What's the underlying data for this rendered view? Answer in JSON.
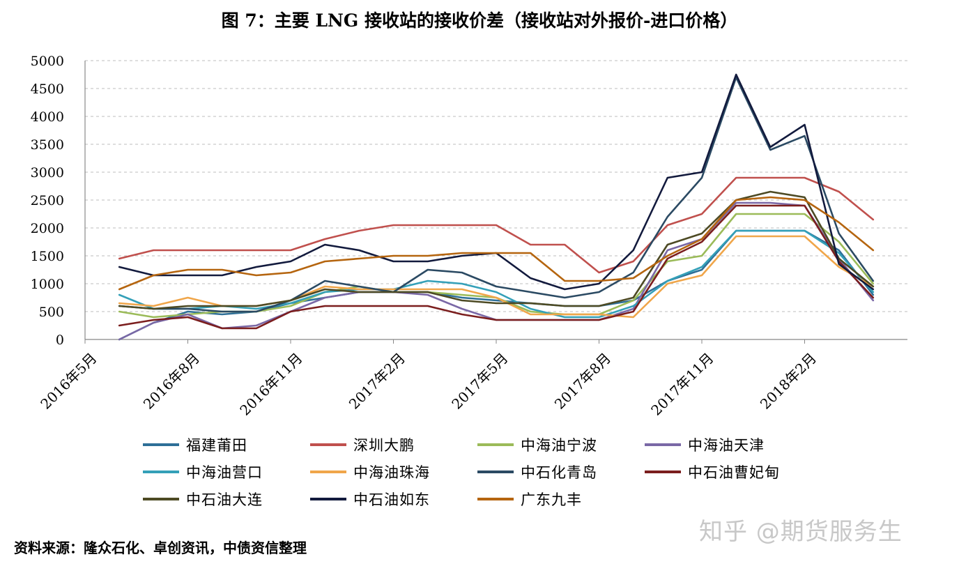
{
  "title": "图 7：主要 LNG 接收站的接收价差（接收站对外报价-进口价格）",
  "source_note": "资料来源：隆众石化、卓创资讯，中债资信整理",
  "watermark": "知乎 @期货服务生",
  "chart_data": {
    "type": "line",
    "title": "图 7：主要 LNG 接收站的接收价差（接收站对外报价-进口价格）",
    "xlabel": "",
    "ylabel": "",
    "ylim": [
      0,
      5000
    ],
    "yticks": [
      0,
      500,
      1000,
      1500,
      2000,
      2500,
      3000,
      3500,
      4000,
      4500,
      5000
    ],
    "grid": "horizontal dashed",
    "legend_position": "bottom",
    "x": [
      "2016年6月",
      "2016年7月",
      "2016年8月",
      "2016年9月",
      "2016年10月",
      "2016年11月",
      "2016年12月",
      "2017年1月",
      "2017年2月",
      "2017年3月",
      "2017年4月",
      "2017年5月",
      "2017年6月",
      "2017年7月",
      "2017年8月",
      "2017年9月",
      "2017年10月",
      "2017年11月",
      "2017年12月",
      "2018年1月",
      "2018年2月",
      "2018年3月",
      "2018年4月"
    ],
    "x_ticks": [
      "2016年5月",
      "2016年8月",
      "2016年11月",
      "2017年2月",
      "2017年5月",
      "2017年8月",
      "2017年11月",
      "2018年2月"
    ],
    "series": [
      {
        "name": "福建莆田",
        "color": "#2e6f97",
        "values": [
          0,
          300,
          500,
          450,
          500,
          650,
          750,
          850,
          850,
          850,
          750,
          700,
          650,
          600,
          600,
          700,
          1050,
          1250,
          1950,
          1950,
          1950,
          1600,
          800
        ]
      },
      {
        "name": "深圳大鹏",
        "color": "#c0504d",
        "values": [
          1450,
          1600,
          1600,
          1600,
          1600,
          1600,
          1800,
          1950,
          2050,
          2050,
          2050,
          2050,
          1700,
          1700,
          1200,
          1400,
          2050,
          2250,
          2900,
          2900,
          2900,
          2650,
          2150
        ]
      },
      {
        "name": "中海油宁波",
        "color": "#9bbb59",
        "values": [
          500,
          400,
          450,
          500,
          500,
          600,
          850,
          950,
          850,
          850,
          800,
          750,
          500,
          450,
          450,
          700,
          1400,
          1500,
          2250,
          2250,
          2250,
          1750,
          1000
        ]
      },
      {
        "name": "中海油天津",
        "color": "#7a68a6",
        "values": [
          0,
          300,
          450,
          200,
          250,
          500,
          750,
          850,
          850,
          800,
          550,
          350,
          350,
          350,
          350,
          550,
          1600,
          1800,
          2450,
          2450,
          2400,
          1450,
          700
        ]
      },
      {
        "name": "中海油营口",
        "color": "#34a0b8",
        "values": [
          800,
          550,
          550,
          600,
          550,
          650,
          850,
          900,
          900,
          1050,
          1000,
          850,
          550,
          400,
          400,
          600,
          1050,
          1300,
          1950,
          1950,
          1950,
          1550,
          850
        ]
      },
      {
        "name": "中海油珠海",
        "color": "#f0a64a",
        "values": [
          650,
          600,
          750,
          600,
          600,
          700,
          950,
          900,
          900,
          900,
          900,
          750,
          450,
          450,
          450,
          400,
          1000,
          1150,
          1850,
          1850,
          1850,
          1300,
          950
        ]
      },
      {
        "name": "中石化青岛",
        "color": "#2b4a63",
        "values": [
          600,
          550,
          550,
          500,
          500,
          700,
          1050,
          950,
          850,
          1250,
          1200,
          950,
          850,
          750,
          850,
          1200,
          2200,
          2900,
          4700,
          3400,
          3650,
          1900,
          1050
        ]
      },
      {
        "name": "中石油曹妃甸",
        "color": "#7b1e1e",
        "values": [
          250,
          350,
          400,
          200,
          200,
          500,
          600,
          600,
          600,
          600,
          450,
          350,
          350,
          350,
          350,
          500,
          1450,
          1750,
          2400,
          2400,
          2400,
          1400,
          750
        ]
      },
      {
        "name": "中石油大连",
        "color": "#4d4a24",
        "values": [
          600,
          550,
          600,
          600,
          600,
          700,
          900,
          850,
          850,
          850,
          700,
          650,
          650,
          600,
          600,
          750,
          1700,
          1900,
          2500,
          2650,
          2550,
          1450,
          950
        ]
      },
      {
        "name": "中石油如东",
        "color": "#121a3d",
        "values": [
          1300,
          1150,
          1150,
          1150,
          1300,
          1400,
          1700,
          1600,
          1400,
          1400,
          1500,
          1550,
          1100,
          900,
          1000,
          1600,
          2900,
          3000,
          4750,
          3450,
          3850,
          1350,
          900
        ]
      },
      {
        "name": "广东九丰",
        "color": "#b5650f",
        "values": [
          900,
          1150,
          1250,
          1250,
          1150,
          1200,
          1400,
          1450,
          1500,
          1500,
          1550,
          1550,
          1550,
          1050,
          1050,
          1100,
          1500,
          1800,
          2500,
          2550,
          2500,
          2100,
          1600
        ]
      }
    ]
  }
}
